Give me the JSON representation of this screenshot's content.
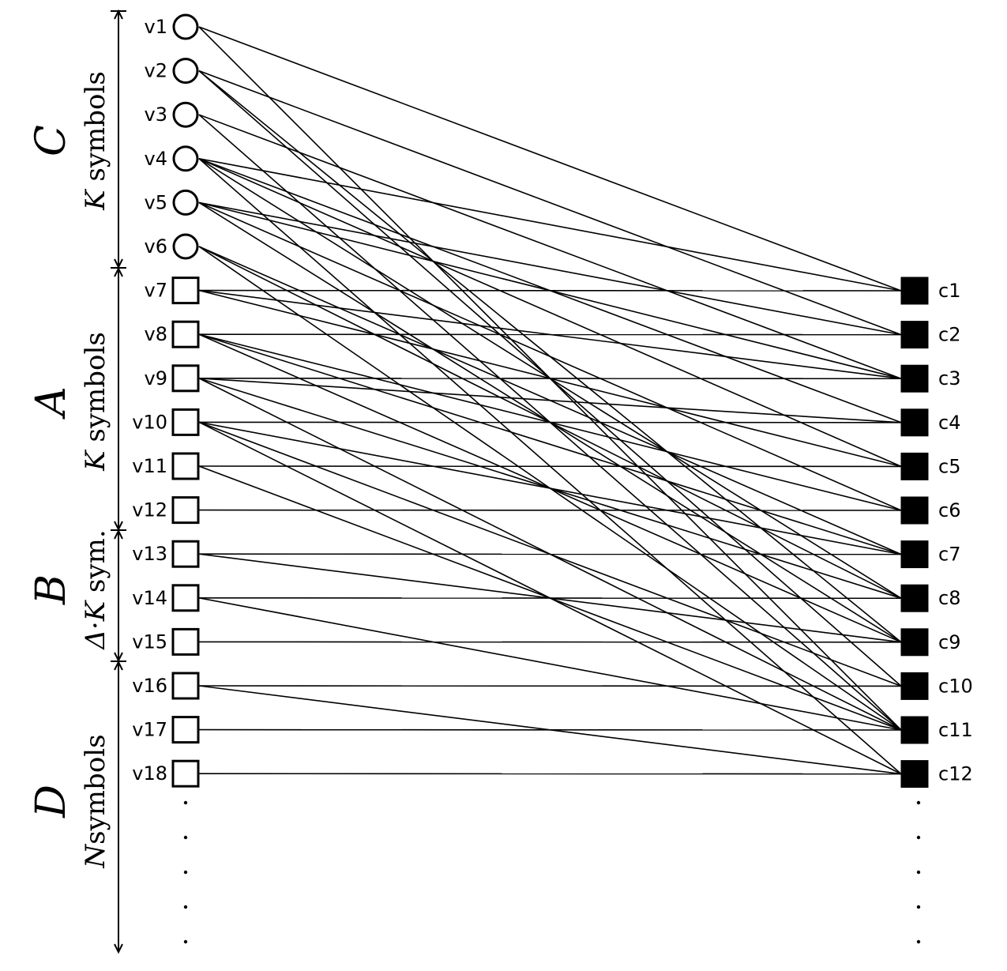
{
  "variable_nodes": [
    {
      "label": "v1",
      "shape": "circle"
    },
    {
      "label": "v2",
      "shape": "circle"
    },
    {
      "label": "v3",
      "shape": "circle"
    },
    {
      "label": "v4",
      "shape": "circle"
    },
    {
      "label": "v5",
      "shape": "circle"
    },
    {
      "label": "v6",
      "shape": "circle"
    },
    {
      "label": "v7",
      "shape": "square"
    },
    {
      "label": "v8",
      "shape": "square"
    },
    {
      "label": "v9",
      "shape": "square"
    },
    {
      "label": "v10",
      "shape": "square"
    },
    {
      "label": "v11",
      "shape": "square"
    },
    {
      "label": "v12",
      "shape": "square"
    },
    {
      "label": "v13",
      "shape": "square"
    },
    {
      "label": "v14",
      "shape": "square"
    },
    {
      "label": "v15",
      "shape": "square"
    },
    {
      "label": "v16",
      "shape": "square"
    },
    {
      "label": "v17",
      "shape": "square"
    },
    {
      "label": "v18",
      "shape": "square"
    }
  ],
  "check_nodes": [
    "c1",
    "c2",
    "c3",
    "c4",
    "c5",
    "c6",
    "c7",
    "c8",
    "c9",
    "c10",
    "c11",
    "c12"
  ],
  "groups": [
    {
      "letter": "C",
      "prefix": "K",
      "text": " symbols"
    },
    {
      "letter": "A",
      "prefix": "K",
      "text": " symbols"
    },
    {
      "letter": "B",
      "prefix": "Δ·K",
      "text": " sym."
    },
    {
      "letter": "D",
      "prefix": "N",
      "text": "symbols"
    }
  ],
  "edges": [
    [
      "v1",
      "c1"
    ],
    [
      "v1",
      "c11"
    ],
    [
      "v2",
      "c2"
    ],
    [
      "v2",
      "c9"
    ],
    [
      "v2",
      "c10"
    ],
    [
      "v3",
      "c3"
    ],
    [
      "v3",
      "c11"
    ],
    [
      "v4",
      "c1"
    ],
    [
      "v4",
      "c4"
    ],
    [
      "v4",
      "c5"
    ],
    [
      "v4",
      "c8"
    ],
    [
      "v4",
      "c12"
    ],
    [
      "v5",
      "c2"
    ],
    [
      "v5",
      "c3"
    ],
    [
      "v5",
      "c6"
    ],
    [
      "v5",
      "c9"
    ],
    [
      "v6",
      "c7"
    ],
    [
      "v6",
      "c8"
    ],
    [
      "v6",
      "c11"
    ],
    [
      "v7",
      "c1"
    ],
    [
      "v7",
      "c3"
    ],
    [
      "v7",
      "c5"
    ],
    [
      "v8",
      "c2"
    ],
    [
      "v8",
      "c6"
    ],
    [
      "v8",
      "c7"
    ],
    [
      "v8",
      "c9"
    ],
    [
      "v9",
      "c3"
    ],
    [
      "v9",
      "c4"
    ],
    [
      "v9",
      "c8"
    ],
    [
      "v9",
      "c11"
    ],
    [
      "v10",
      "c4"
    ],
    [
      "v10",
      "c7"
    ],
    [
      "v10",
      "c10"
    ],
    [
      "v10",
      "c12"
    ],
    [
      "v11",
      "c5"
    ],
    [
      "v11",
      "c11"
    ],
    [
      "v12",
      "c6"
    ],
    [
      "v13",
      "c7"
    ],
    [
      "v13",
      "c9"
    ],
    [
      "v14",
      "c8"
    ],
    [
      "v14",
      "c11"
    ],
    [
      "v15",
      "c9"
    ],
    [
      "v16",
      "c10"
    ],
    [
      "v16",
      "c12"
    ],
    [
      "v17",
      "c11"
    ],
    [
      "v18",
      "c12"
    ]
  ]
}
